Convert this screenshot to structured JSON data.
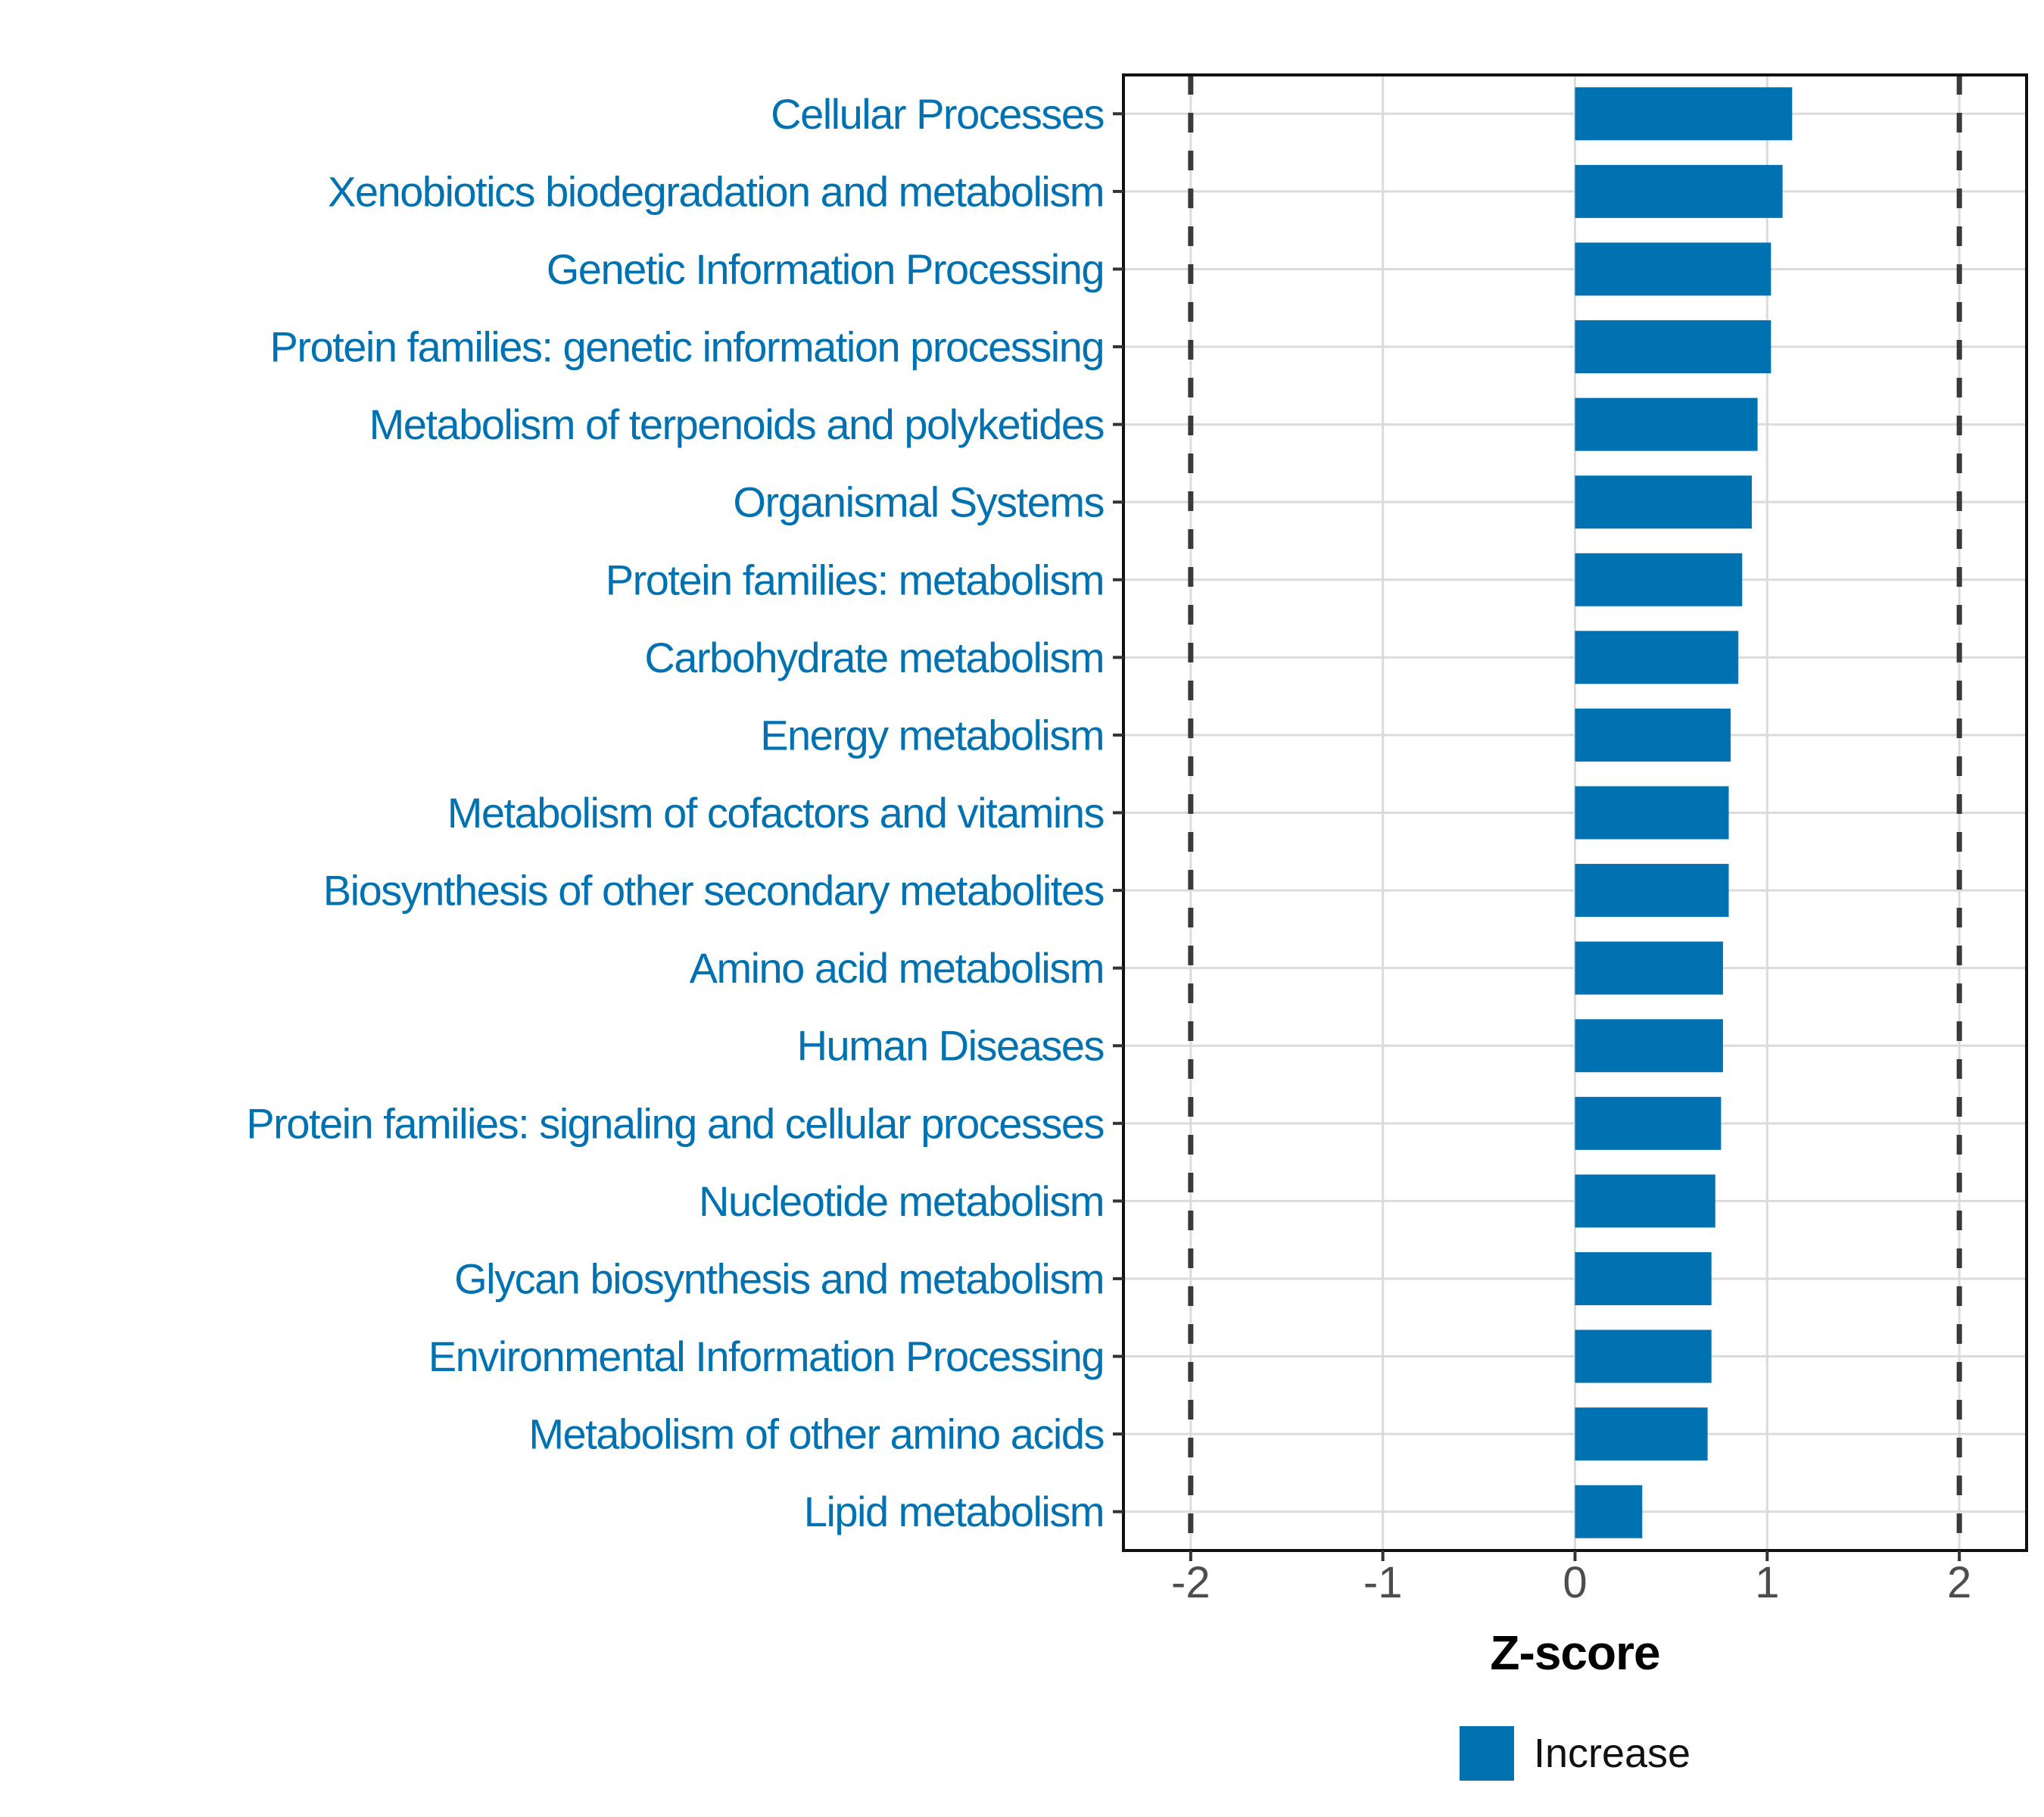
{
  "chart_data": {
    "type": "bar",
    "orientation": "horizontal",
    "title": "",
    "xlabel": "Z-score",
    "ylabel": "",
    "categories": [
      "Cellular Processes",
      "Xenobiotics biodegradation and metabolism",
      "Genetic Information Processing",
      "Protein families: genetic information processing",
      "Metabolism of terpenoids and polyketides",
      "Organismal Systems",
      "Protein families: metabolism",
      "Carbohydrate metabolism",
      "Energy metabolism",
      "Metabolism of cofactors and vitamins",
      "Biosynthesis of other secondary metabolites",
      "Amino acid metabolism",
      "Human Diseases",
      "Protein families: signaling and cellular processes",
      "Nucleotide metabolism",
      "Glycan biosynthesis and metabolism",
      "Environmental Information Processing",
      "Metabolism of other amino acids",
      "Lipid metabolism"
    ],
    "values": [
      1.13,
      1.08,
      1.02,
      1.02,
      0.95,
      0.92,
      0.87,
      0.85,
      0.81,
      0.8,
      0.8,
      0.77,
      0.77,
      0.76,
      0.73,
      0.71,
      0.71,
      0.69,
      0.35
    ],
    "x_ticks": [
      "-2",
      "-1",
      "0",
      "1",
      "2"
    ],
    "x_tick_values": [
      -2,
      -1,
      0,
      1,
      2
    ],
    "xlim": [
      -2.35,
      2.35
    ],
    "reference_lines": [
      -2,
      2
    ],
    "grid": true,
    "legend": {
      "position": "bottom",
      "items": [
        {
          "label": "Increase",
          "color": "#0072B2"
        }
      ]
    },
    "colors": {
      "bar": "#0072B2",
      "category_label": "#0072B2",
      "tick_label": "#4D4D4D",
      "axis_title": "#000000",
      "gridline": "#DBDBDB",
      "reference_line": "#3A3A3A",
      "panel_border": "#111111",
      "tick_mark": "#333333",
      "background": "#FFFFFF"
    }
  }
}
